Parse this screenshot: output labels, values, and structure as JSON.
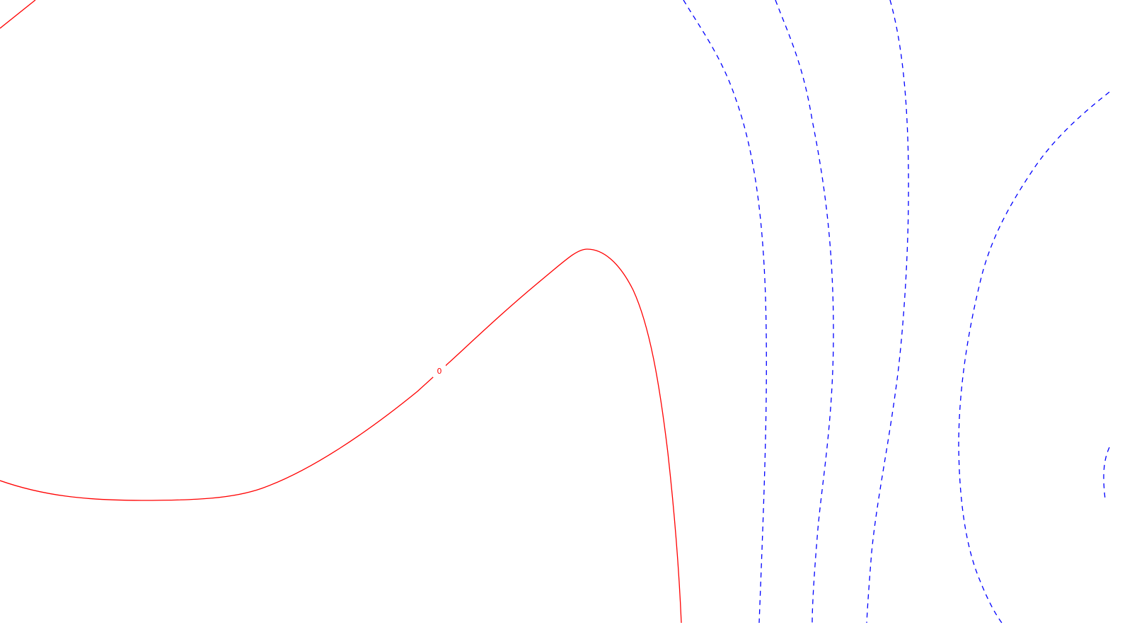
{
  "plot": {
    "background": "#ffffff",
    "colors": {
      "positive_contour": "#ff0000",
      "negative_contour": "#0000ff"
    },
    "zero_contour_label": "0"
  }
}
